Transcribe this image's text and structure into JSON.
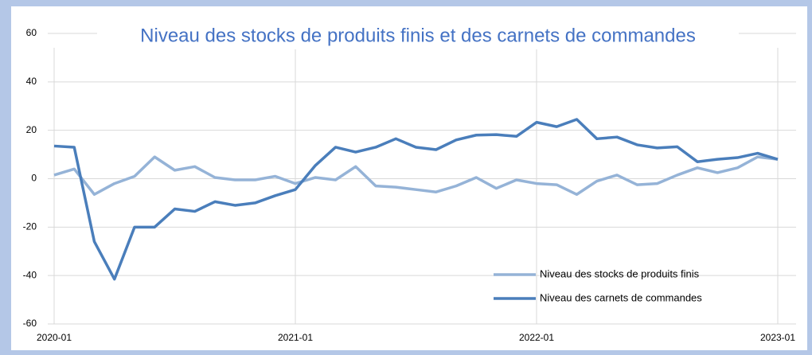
{
  "chart_data": {
    "type": "line",
    "title": "Niveau des stocks de produits finis et des carnets de commandes",
    "x": [
      "2020-01",
      null,
      null,
      null,
      null,
      null,
      null,
      null,
      null,
      null,
      null,
      null,
      "2021-01",
      null,
      null,
      null,
      null,
      null,
      null,
      null,
      null,
      null,
      null,
      null,
      "2022-01",
      null,
      null,
      null,
      null,
      null,
      null,
      null,
      null,
      null,
      null,
      null,
      "2023-01"
    ],
    "series": [
      {
        "name": "Niveau des stocks de produits finis",
        "color": "#95b3d7",
        "values": [
          1.5,
          4,
          -6.5,
          -2,
          1,
          9,
          3.5,
          5,
          0.5,
          -0.5,
          -0.5,
          1,
          -2,
          0.5,
          -0.5,
          5,
          -3,
          -3.5,
          -4.5,
          -5.5,
          -3,
          0.5,
          -4,
          -0.5,
          -2,
          -2.5,
          -6.5,
          -1,
          1.5,
          -2.5,
          -2,
          1.5,
          4.5,
          2.5,
          4.5,
          9,
          8
        ]
      },
      {
        "name": "Niveau des carnets de commandes",
        "color": "#4a7ebb",
        "values": [
          13.5,
          13,
          -26,
          -41.5,
          -20,
          -20,
          -12.5,
          -13.5,
          -9.5,
          -11,
          -10,
          -7,
          -4.5,
          5.5,
          13,
          11,
          13,
          16.5,
          13,
          12,
          16,
          18,
          18.2,
          17.5,
          23.3,
          21.5,
          24.5,
          16.5,
          17.2,
          14,
          12.7,
          13.2,
          7,
          8,
          8.7,
          10.5,
          8
        ]
      }
    ],
    "ylim": [
      -60,
      60
    ],
    "yticks": [
      -60,
      -40,
      -20,
      0,
      20,
      40,
      60
    ],
    "grid": true,
    "legend": "lower right"
  }
}
